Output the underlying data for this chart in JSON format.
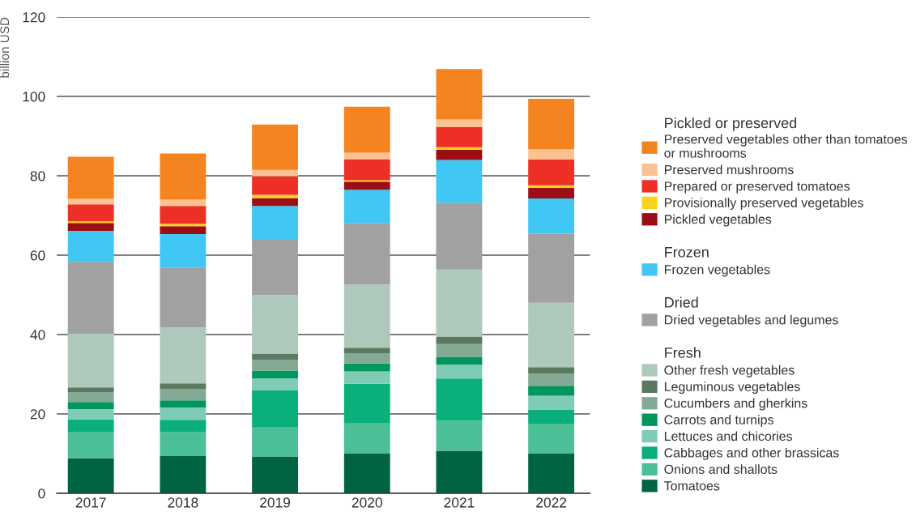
{
  "chart_data": {
    "type": "bar",
    "stacked": true,
    "ylabel": "billion USD",
    "categories": [
      "2017",
      "2018",
      "2019",
      "2020",
      "2021",
      "2022"
    ],
    "ylim": [
      0,
      120
    ],
    "yticks": [
      0,
      20,
      40,
      60,
      80,
      100,
      120
    ],
    "grid": "y",
    "legend": "right",
    "annotations": [
      "Pickled or preserved",
      "Frozen",
      "Dried",
      "Fresh"
    ],
    "series": [
      {
        "name": "Tomatoes",
        "color": "#006443",
        "values": [
          8.8,
          9.5,
          9.3,
          10.1,
          10.7,
          10.1
        ]
      },
      {
        "name": "Onions and shallots",
        "color": "#4bbf95",
        "values": [
          6.7,
          5.9,
          7.3,
          7.5,
          7.6,
          7.3
        ]
      },
      {
        "name": "Cabbages and other brassicas",
        "color": "#0aaf7b",
        "values": [
          3.1,
          3.1,
          9.4,
          10.0,
          10.6,
          3.7
        ]
      },
      {
        "name": "Lettuces and chicories",
        "color": "#7ecbb6",
        "values": [
          2.6,
          3.1,
          2.9,
          3.1,
          3.5,
          3.5
        ]
      },
      {
        "name": "Carrots and turnips",
        "color": "#00965e",
        "values": [
          1.8,
          1.8,
          2.0,
          2.0,
          2.0,
          2.5
        ]
      },
      {
        "name": "Cucumbers and gherkins",
        "color": "#84aa96",
        "values": [
          2.5,
          2.9,
          2.7,
          2.6,
          3.2,
          3.1
        ]
      },
      {
        "name": "Leguminous vegetables",
        "color": "#5a7a60",
        "values": [
          1.2,
          1.4,
          1.6,
          1.4,
          1.9,
          1.6
        ]
      },
      {
        "name": "Other fresh vegetables",
        "color": "#aec8bb",
        "values": [
          13.5,
          14.1,
          14.7,
          15.9,
          16.9,
          16.2
        ]
      },
      {
        "name": "Dried vegetables and legumes",
        "color": "#a1a1a1",
        "values": [
          18.1,
          15.1,
          14.2,
          15.5,
          16.8,
          17.4
        ]
      },
      {
        "name": "Frozen vegetables",
        "color": "#41c7f4",
        "values": [
          7.8,
          8.4,
          8.3,
          8.4,
          10.8,
          8.9
        ]
      },
      {
        "name": "Pickled vegetables",
        "color": "#9b0f14",
        "values": [
          2.0,
          2.0,
          2.0,
          2.0,
          2.6,
          2.7
        ]
      },
      {
        "name": "Provisionally preserved vegetables",
        "color": "#fdd21b",
        "values": [
          0.4,
          0.6,
          0.8,
          0.4,
          0.6,
          0.6
        ]
      },
      {
        "name": "Prepared or preserved tomatoes",
        "color": "#ee2f25",
        "values": [
          4.3,
          4.5,
          4.7,
          5.3,
          5.1,
          6.5
        ]
      },
      {
        "name": "Preserved mushrooms",
        "color": "#fbc191",
        "values": [
          1.4,
          1.6,
          1.6,
          1.6,
          1.9,
          2.6
        ]
      },
      {
        "name": "Preserved vegetables other than tomatoes\nor mushrooms",
        "color": "#f38420",
        "values": [
          10.6,
          11.6,
          11.4,
          11.6,
          12.7,
          12.7
        ]
      }
    ]
  }
}
